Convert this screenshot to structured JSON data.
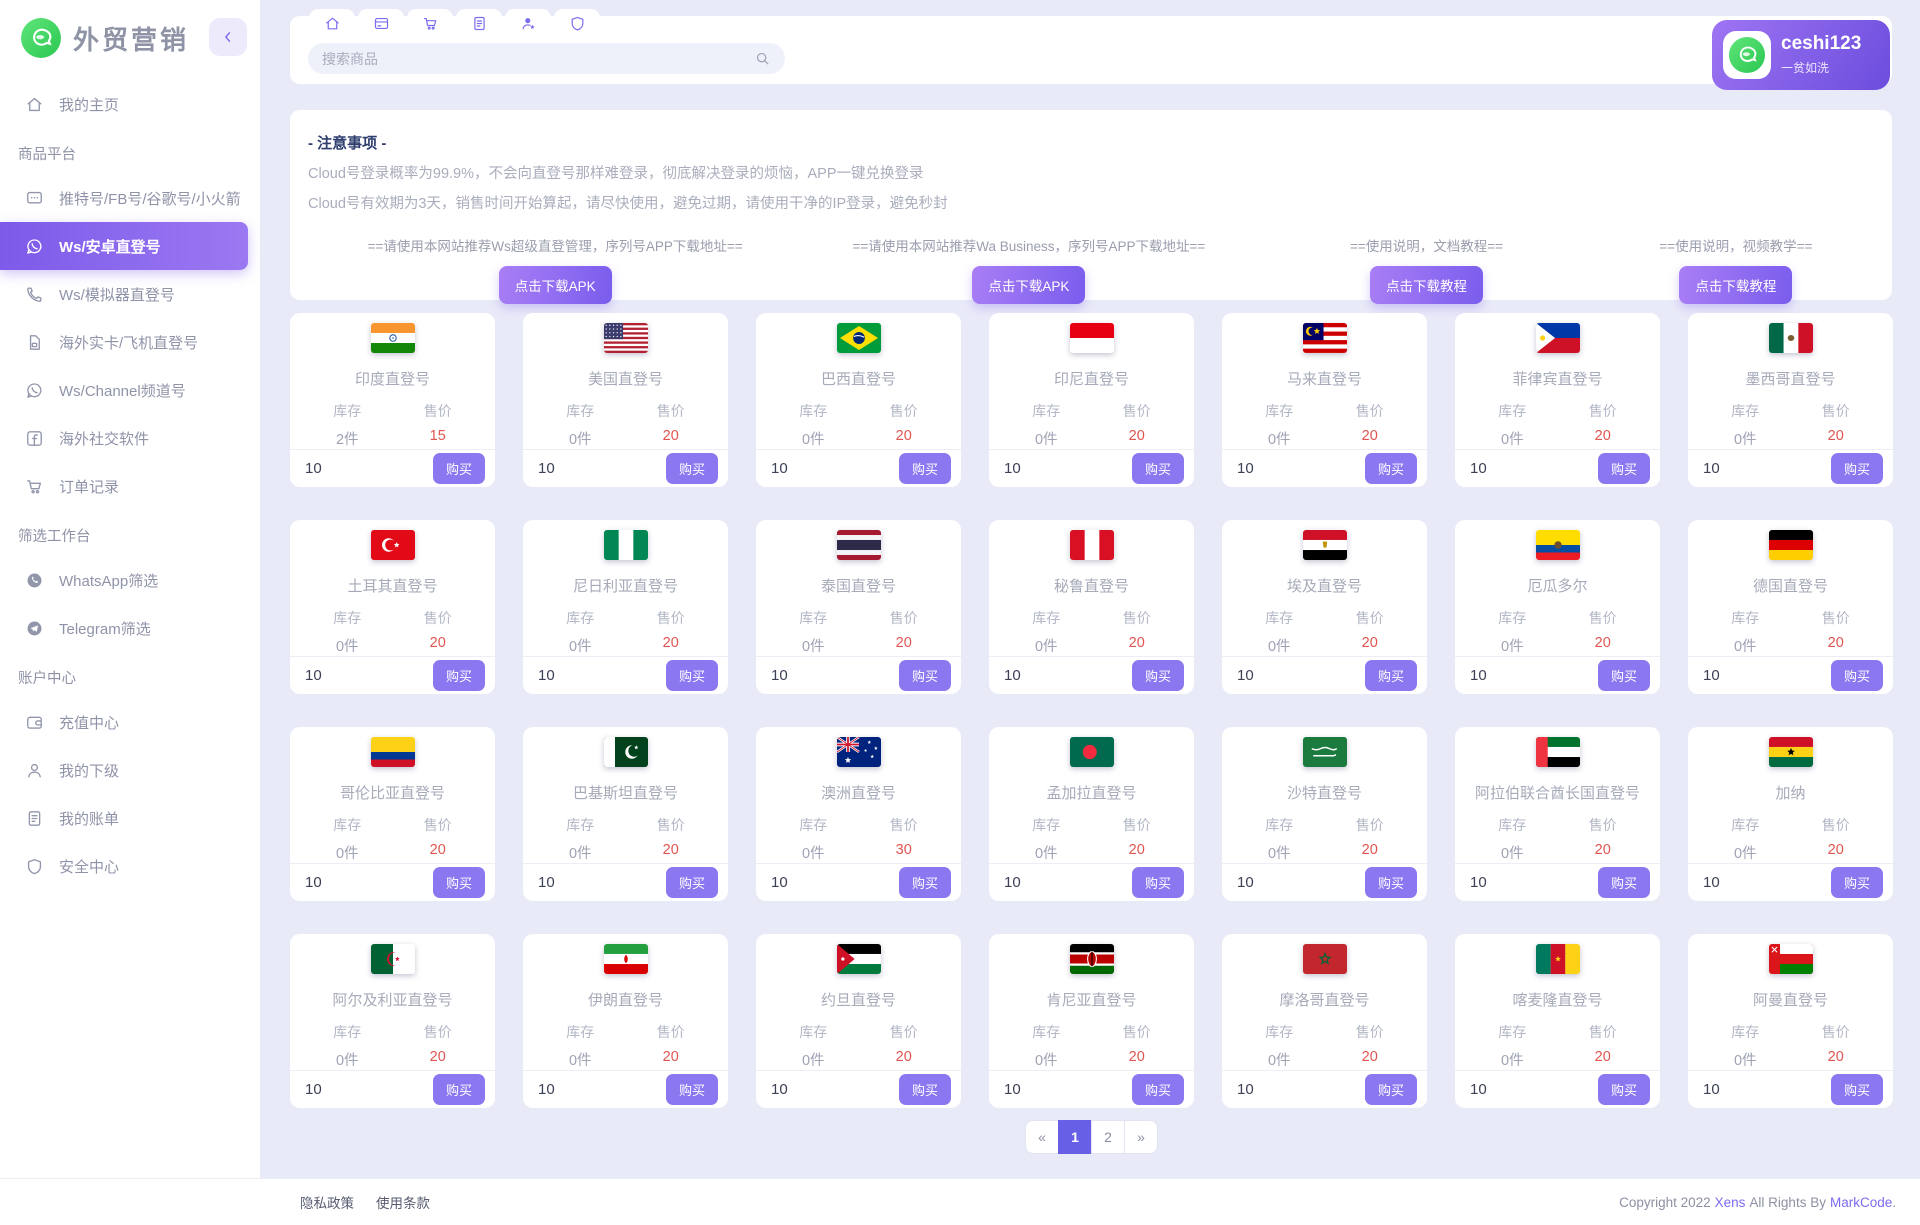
{
  "app": {
    "title": "外贸营销"
  },
  "sidebar": {
    "items": [
      {
        "type": "item",
        "icon": "home",
        "label": "我的主页"
      },
      {
        "type": "section",
        "label": "商品平台"
      },
      {
        "type": "item",
        "icon": "chat",
        "label": "推特号/FB号/谷歌号/小火箭"
      },
      {
        "type": "item",
        "icon": "whatsapp",
        "label": "Ws/安卓直登号",
        "active": true
      },
      {
        "type": "item",
        "icon": "phone",
        "label": "Ws/模拟器直登号"
      },
      {
        "type": "item",
        "icon": "sim",
        "label": "海外实卡/飞机直登号"
      },
      {
        "type": "item",
        "icon": "whatsapp",
        "label": "Ws/Channel频道号"
      },
      {
        "type": "item",
        "icon": "facebook",
        "label": "海外社交软件"
      },
      {
        "type": "item",
        "icon": "cart",
        "label": "订单记录"
      },
      {
        "type": "section",
        "label": "筛选工作台"
      },
      {
        "type": "item",
        "icon": "whatsapp-filled",
        "label": "WhatsApp筛选"
      },
      {
        "type": "item",
        "icon": "telegram",
        "label": "Telegram筛选"
      },
      {
        "type": "section",
        "label": "账户中心"
      },
      {
        "type": "item",
        "icon": "wallet",
        "label": "充值中心"
      },
      {
        "type": "item",
        "icon": "user",
        "label": "我的下级"
      },
      {
        "type": "item",
        "icon": "bill",
        "label": "我的账单"
      },
      {
        "type": "item",
        "icon": "shield",
        "label": "安全中心"
      }
    ]
  },
  "header": {
    "tabs": [
      "home",
      "card",
      "cart",
      "bill",
      "user-star",
      "shield"
    ],
    "search_placeholder": "搜索商品",
    "user": {
      "name": "ceshi123",
      "subtitle": "一贫如洗"
    }
  },
  "notice": {
    "title": "- 注意事项 -",
    "lines": [
      "Cloud号登录概率为99.9%，不会向直登号那样难登录，彻底解决登录的烦恼，APP一键兑换登录",
      "Cloud号有效期为3天，销售时间开始算起，请尽快使用，避免过期，请使用干净的IP登录，避免秒封"
    ],
    "downloads": [
      {
        "label": "==请使用本网站推荐Ws超级直登管理，序列号APP下载地址==",
        "button": "点击下载APK"
      },
      {
        "label": "==请使用本网站推荐Wa Business，序列号APP下载地址==",
        "button": "点击下载APK"
      },
      {
        "label": "==使用说明，文档教程==",
        "button": "点击下载教程"
      },
      {
        "label": "==使用说明，视频教学==",
        "button": "点击下载教程"
      }
    ]
  },
  "products": {
    "labels": {
      "stock": "库存",
      "price": "售价",
      "buy": "购买"
    },
    "items": [
      {
        "name": "印度直登号",
        "flag": "in",
        "stock": "2件",
        "price": "15",
        "qty": "10"
      },
      {
        "name": "美国直登号",
        "flag": "us",
        "stock": "0件",
        "price": "20",
        "qty": "10"
      },
      {
        "name": "巴西直登号",
        "flag": "br",
        "stock": "0件",
        "price": "20",
        "qty": "10"
      },
      {
        "name": "印尼直登号",
        "flag": "id",
        "stock": "0件",
        "price": "20",
        "qty": "10"
      },
      {
        "name": "马来直登号",
        "flag": "my",
        "stock": "0件",
        "price": "20",
        "qty": "10"
      },
      {
        "name": "菲律宾直登号",
        "flag": "ph",
        "stock": "0件",
        "price": "20",
        "qty": "10"
      },
      {
        "name": "墨西哥直登号",
        "flag": "mx",
        "stock": "0件",
        "price": "20",
        "qty": "10"
      },
      {
        "name": "土耳其直登号",
        "flag": "tr",
        "stock": "0件",
        "price": "20",
        "qty": "10"
      },
      {
        "name": "尼日利亚直登号",
        "flag": "ng",
        "stock": "0件",
        "price": "20",
        "qty": "10"
      },
      {
        "name": "泰国直登号",
        "flag": "th",
        "stock": "0件",
        "price": "20",
        "qty": "10"
      },
      {
        "name": "秘鲁直登号",
        "flag": "pe",
        "stock": "0件",
        "price": "20",
        "qty": "10"
      },
      {
        "name": "埃及直登号",
        "flag": "eg",
        "stock": "0件",
        "price": "20",
        "qty": "10"
      },
      {
        "name": "厄瓜多尔",
        "flag": "ec",
        "stock": "0件",
        "price": "20",
        "qty": "10"
      },
      {
        "name": "德国直登号",
        "flag": "de",
        "stock": "0件",
        "price": "20",
        "qty": "10"
      },
      {
        "name": "哥伦比亚直登号",
        "flag": "co",
        "stock": "0件",
        "price": "20",
        "qty": "10"
      },
      {
        "name": "巴基斯坦直登号",
        "flag": "pk",
        "stock": "0件",
        "price": "20",
        "qty": "10"
      },
      {
        "name": "澳洲直登号",
        "flag": "au",
        "stock": "0件",
        "price": "30",
        "qty": "10"
      },
      {
        "name": "孟加拉直登号",
        "flag": "bd",
        "stock": "0件",
        "price": "20",
        "qty": "10"
      },
      {
        "name": "沙特直登号",
        "flag": "sa",
        "stock": "0件",
        "price": "20",
        "qty": "10"
      },
      {
        "name": "阿拉伯联合酋长国直登号",
        "flag": "ae",
        "stock": "0件",
        "price": "20",
        "qty": "10"
      },
      {
        "name": "加纳",
        "flag": "gh",
        "stock": "0件",
        "price": "20",
        "qty": "10"
      },
      {
        "name": "阿尔及利亚直登号",
        "flag": "dz",
        "stock": "0件",
        "price": "20",
        "qty": "10"
      },
      {
        "name": "伊朗直登号",
        "flag": "ir",
        "stock": "0件",
        "price": "20",
        "qty": "10"
      },
      {
        "name": "约旦直登号",
        "flag": "jo",
        "stock": "0件",
        "price": "20",
        "qty": "10"
      },
      {
        "name": "肯尼亚直登号",
        "flag": "ke",
        "stock": "0件",
        "price": "20",
        "qty": "10"
      },
      {
        "name": "摩洛哥直登号",
        "flag": "ma",
        "stock": "0件",
        "price": "20",
        "qty": "10"
      },
      {
        "name": "喀麦隆直登号",
        "flag": "cm",
        "stock": "0件",
        "price": "20",
        "qty": "10"
      },
      {
        "name": "阿曼直登号",
        "flag": "om",
        "stock": "0件",
        "price": "20",
        "qty": "10"
      }
    ]
  },
  "pagination": {
    "prev": "«",
    "pages": [
      "1",
      "2"
    ],
    "active_page": "1",
    "next": "»"
  },
  "footer": {
    "links": [
      "隐私政策",
      "使用条款"
    ],
    "copyright": {
      "prefix": "Copyright 2022",
      "brand": "Xens",
      "middle": "All Rights By",
      "brand2": "MarkCode",
      "suffix": "."
    }
  },
  "colors": {
    "accent": "#7b68ee",
    "price_red": "#e05550",
    "logo_green": "#3ed15c",
    "background": "#e9eaf8"
  }
}
